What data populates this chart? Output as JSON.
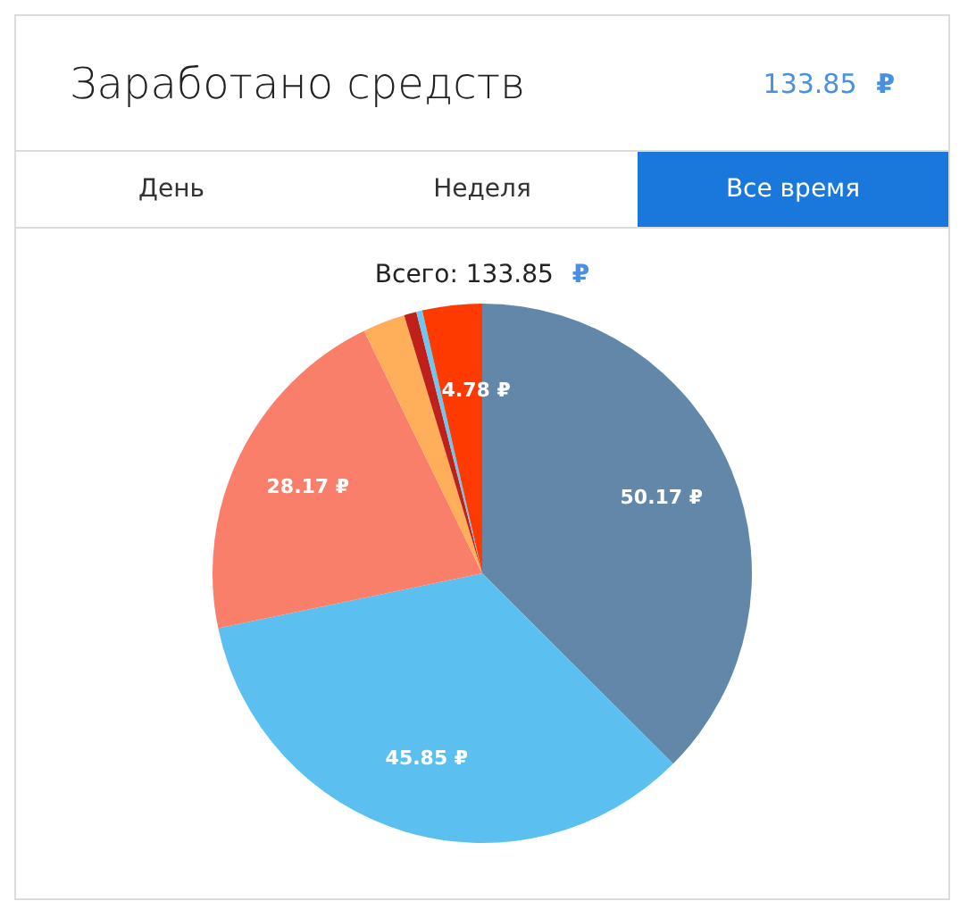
{
  "chart_data": {
    "type": "pie",
    "title": "Заработано средств",
    "subtitle": "Всего: 133.85 ₽",
    "annotations": [
      "133.85 ₽",
      "День",
      "Неделя",
      "Все время"
    ],
    "categories": [
      null,
      null,
      null,
      null,
      null,
      null,
      null
    ],
    "values": [
      50.17,
      45.85,
      28.17,
      3.4,
      1.0,
      0.48,
      4.78
    ],
    "colors": [
      "#6287a8",
      "#5bc0f0",
      "#fa7f6a",
      "#ffae5a",
      "#c0201a",
      "#6cc8f0",
      "#ff3a00"
    ],
    "value_labels": [
      "50.17 ₽",
      "45.85 ₽",
      "28.17 ₽",
      null,
      null,
      null,
      "4.78 ₽"
    ],
    "legend": false
  }
}
